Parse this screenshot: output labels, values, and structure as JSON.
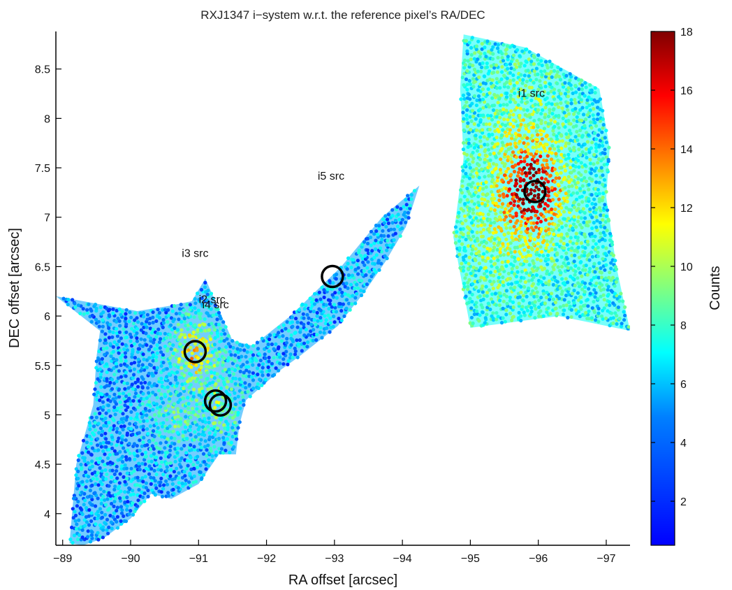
{
  "chart_data": {
    "type": "scatter",
    "title": "RXJ1347 i−system w.r.t. the reference pixel’s RA/DEC",
    "xlabel": "RA offset [arcsec]",
    "ylabel": "DEC offset [arcsec]",
    "xlim": [
      -88.9,
      -97.35
    ],
    "ylim": [
      3.68,
      8.88
    ],
    "x_reversed": true,
    "x_ticks": [
      "−89",
      "−90",
      "−91",
      "−92",
      "−93",
      "−94",
      "−95",
      "−96",
      "−97"
    ],
    "x_tick_values": [
      -89,
      -90,
      -91,
      -92,
      -93,
      -94,
      -95,
      -96,
      -97
    ],
    "y_ticks": [
      "4",
      "4.5",
      "5",
      "5.5",
      "6",
      "6.5",
      "7",
      "7.5",
      "8",
      "8.5"
    ],
    "y_tick_values": [
      4,
      4.5,
      5,
      5.5,
      6,
      6.5,
      7,
      7.5,
      8,
      8.5
    ],
    "colorbar": {
      "label": "Counts",
      "range": [
        0.5,
        18
      ],
      "ticks": [
        "2",
        "4",
        "6",
        "8",
        "10",
        "12",
        "14",
        "16",
        "18"
      ],
      "tick_values": [
        2,
        4,
        6,
        8,
        10,
        12,
        14,
        16,
        18
      ],
      "colormap": "jet"
    },
    "fields": [
      {
        "id": "i1",
        "polygon": [
          [
            -94.9,
            8.85
          ],
          [
            -95.8,
            8.72
          ],
          [
            -96.9,
            8.3
          ],
          [
            -97.05,
            7.7
          ],
          [
            -97.0,
            7.2
          ],
          [
            -97.15,
            6.5
          ],
          [
            -97.35,
            5.85
          ],
          [
            -96.3,
            6.0
          ],
          [
            -95.0,
            5.88
          ],
          [
            -94.75,
            6.8
          ],
          [
            -94.9,
            7.6
          ],
          [
            -94.85,
            8.3
          ]
        ],
        "base_counts": 7.2,
        "hotspots": [
          {
            "ra": -95.95,
            "dec": 7.28,
            "peak": 16.5,
            "radius": 0.38
          },
          {
            "ra": -95.6,
            "dec": 7.0,
            "peak": 10.5,
            "radius": 0.7
          },
          {
            "ra": -95.8,
            "dec": 7.9,
            "peak": 9.5,
            "radius": 0.55
          }
        ]
      },
      {
        "id": "i2-i5",
        "polygon": [
          [
            -89.1,
            3.7
          ],
          [
            -89.2,
            4.5
          ],
          [
            -89.45,
            5.1
          ],
          [
            -89.5,
            5.6
          ],
          [
            -89.55,
            5.85
          ],
          [
            -88.9,
            6.2
          ],
          [
            -90.1,
            6.05
          ],
          [
            -90.55,
            6.1
          ],
          [
            -90.9,
            6.15
          ],
          [
            -91.1,
            6.38
          ],
          [
            -91.5,
            5.75
          ],
          [
            -91.8,
            5.7
          ],
          [
            -92.35,
            6.0
          ],
          [
            -93.1,
            6.5
          ],
          [
            -93.7,
            7.0
          ],
          [
            -94.25,
            7.32
          ],
          [
            -94.05,
            6.9
          ],
          [
            -93.75,
            6.55
          ],
          [
            -93.45,
            6.25
          ],
          [
            -93.05,
            5.9
          ],
          [
            -92.5,
            5.6
          ],
          [
            -92.2,
            5.45
          ],
          [
            -91.95,
            5.3
          ],
          [
            -91.7,
            5.15
          ],
          [
            -91.6,
            4.9
          ],
          [
            -91.55,
            4.6
          ],
          [
            -91.3,
            4.6
          ],
          [
            -91.0,
            4.3
          ],
          [
            -90.6,
            4.15
          ],
          [
            -90.3,
            4.2
          ],
          [
            -90.0,
            3.95
          ],
          [
            -89.6,
            3.75
          ],
          [
            -89.3,
            3.68
          ]
        ],
        "base_counts": 5.5,
        "hotspots": [
          {
            "ra": -90.95,
            "dec": 5.65,
            "peak": 12.5,
            "radius": 0.3
          },
          {
            "ra": -91.3,
            "dec": 5.1,
            "peak": 9.0,
            "radius": 0.35
          },
          {
            "ra": -90.6,
            "dec": 5.0,
            "peak": 8.5,
            "radius": 0.3
          }
        ]
      }
    ],
    "sources": [
      {
        "name": "i1",
        "label": "i1 src",
        "ra": -95.95,
        "dec": 7.26,
        "label_ra": -95.9,
        "label_dec": 8.22
      },
      {
        "name": "i2",
        "label": "i2 src",
        "ra": -90.95,
        "dec": 5.64,
        "label_ra": -91.2,
        "label_dec": 6.13
      },
      {
        "name": "i3",
        "label": "i3 src",
        "ra": -91.0,
        "dec": 5.63,
        "label_ra": -90.95,
        "label_dec": 6.6
      },
      {
        "name": "i4",
        "label": "i4 src",
        "ra": -91.32,
        "dec": 5.12,
        "label_ra": -91.25,
        "label_dec": 6.08
      },
      {
        "name": "i5",
        "label": "i5 src",
        "ra": -92.97,
        "dec": 6.4,
        "label_ra": -92.95,
        "label_dec": 7.38
      }
    ],
    "circles": [
      {
        "ra": -95.95,
        "dec": 7.26
      },
      {
        "ra": -90.95,
        "dec": 5.64
      },
      {
        "ra": -91.25,
        "dec": 5.14
      },
      {
        "ra": -91.32,
        "dec": 5.1
      },
      {
        "ra": -92.97,
        "dec": 6.4
      }
    ]
  }
}
